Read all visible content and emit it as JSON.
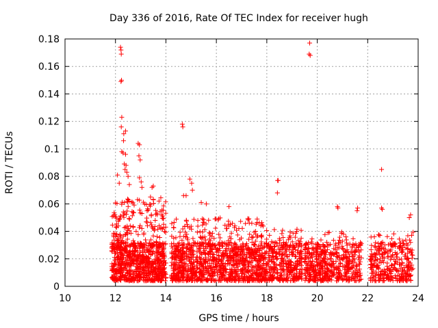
{
  "chart_data": {
    "type": "scatter",
    "title": "Day 336 of 2016, Rate Of TEC Index for receiver hugh",
    "xlabel": "GPS time / hours",
    "ylabel": "ROTI / TECUs",
    "xlim": [
      10,
      24
    ],
    "ylim": [
      0,
      0.18
    ],
    "grid": true,
    "marker": "+",
    "color": "#ff0000",
    "x_ticks": [
      "10",
      "12",
      "14",
      "16",
      "18",
      "20",
      "22",
      "24"
    ],
    "y_ticks": [
      "0",
      "0.02",
      "0.04",
      "0.06",
      "0.08",
      "0.1",
      "0.12",
      "0.14",
      "0.16",
      "0.18"
    ],
    "series": [
      {
        "name": "ROTI",
        "points": [
          [
            12.2,
            0.174
          ],
          [
            12.22,
            0.172
          ],
          [
            12.23,
            0.169
          ],
          [
            12.24,
            0.15
          ],
          [
            12.22,
            0.149
          ],
          [
            12.25,
            0.123
          ],
          [
            12.23,
            0.116
          ],
          [
            12.4,
            0.113
          ],
          [
            12.33,
            0.111
          ],
          [
            12.32,
            0.106
          ],
          [
            12.9,
            0.104
          ],
          [
            12.95,
            0.103
          ],
          [
            12.25,
            0.098
          ],
          [
            12.3,
            0.097
          ],
          [
            12.4,
            0.096
          ],
          [
            12.93,
            0.095
          ],
          [
            12.98,
            0.092
          ],
          [
            12.35,
            0.089
          ],
          [
            12.42,
            0.088
          ],
          [
            12.38,
            0.085
          ],
          [
            12.45,
            0.083
          ],
          [
            12.08,
            0.081
          ],
          [
            12.5,
            0.08
          ],
          [
            12.95,
            0.079
          ],
          [
            13.02,
            0.076
          ],
          [
            12.15,
            0.075
          ],
          [
            12.55,
            0.074
          ],
          [
            13.05,
            0.072
          ],
          [
            13.5,
            0.073
          ],
          [
            13.45,
            0.072
          ],
          [
            14.65,
            0.118
          ],
          [
            14.67,
            0.116
          ],
          [
            14.7,
            0.066
          ],
          [
            14.95,
            0.078
          ],
          [
            15.02,
            0.075
          ],
          [
            15.05,
            0.07
          ],
          [
            14.8,
            0.066
          ],
          [
            15.4,
            0.061
          ],
          [
            15.6,
            0.06
          ],
          [
            16.5,
            0.058
          ],
          [
            18.45,
            0.077
          ],
          [
            18.43,
            0.077
          ],
          [
            18.42,
            0.068
          ],
          [
            19.7,
            0.177
          ],
          [
            19.68,
            0.169
          ],
          [
            19.72,
            0.168
          ],
          [
            20.8,
            0.058
          ],
          [
            20.82,
            0.057
          ],
          [
            21.6,
            0.057
          ],
          [
            21.58,
            0.055
          ],
          [
            22.55,
            0.085
          ],
          [
            22.55,
            0.057
          ],
          [
            22.58,
            0.056
          ],
          [
            23.7,
            0.052
          ],
          [
            23.65,
            0.05
          ]
        ],
        "clusters": [
          {
            "x_range": [
              11.85,
              14.0
            ],
            "peak": 0.065,
            "density": 900
          },
          {
            "x_range": [
              14.2,
              17.9
            ],
            "peak": 0.05,
            "density": 1100
          },
          {
            "x_range": [
              17.9,
              19.4
            ],
            "peak": 0.042,
            "density": 380
          },
          {
            "x_range": [
              19.5,
              20.3
            ],
            "peak": 0.035,
            "density": 230
          },
          {
            "x_range": [
              20.3,
              21.75
            ],
            "peak": 0.04,
            "density": 300
          },
          {
            "x_range": [
              22.1,
              23.8
            ],
            "peak": 0.04,
            "density": 330
          }
        ]
      }
    ]
  }
}
